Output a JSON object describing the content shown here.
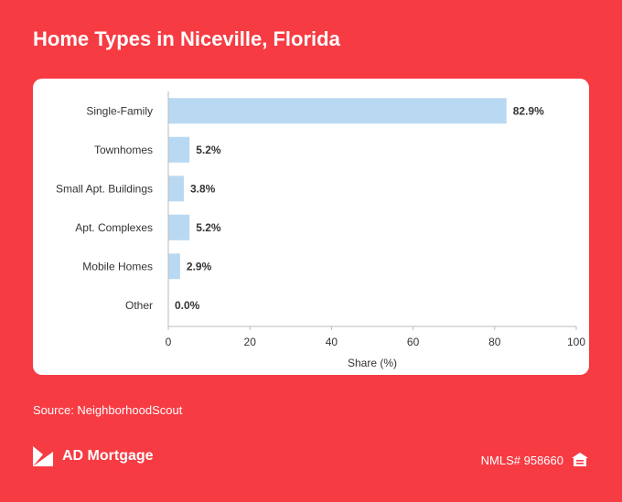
{
  "header": {
    "title": "Home Types in Niceville, Florida"
  },
  "footer": {
    "source": "Source: NeighborhoodScout",
    "brand": "AD Mortgage",
    "brand_icon": "ad-mortgage-logo-icon",
    "nmls": "NMLS# 958660",
    "nmls_icon": "equal-housing-icon"
  },
  "colors": {
    "background": "#F73B43",
    "bar": "#B9D9F2",
    "card": "#FFFFFF",
    "text": "#333333"
  },
  "chart_data": {
    "type": "bar",
    "orientation": "horizontal",
    "categories": [
      "Single-Family",
      "Townhomes",
      "Small Apt. Buildings",
      "Apt. Complexes",
      "Mobile Homes",
      "Other"
    ],
    "values": [
      82.9,
      5.2,
      3.8,
      5.2,
      2.9,
      0.0
    ],
    "value_labels": [
      "82.9%",
      "5.2%",
      "3.8%",
      "5.2%",
      "2.9%",
      "0.0%"
    ],
    "xlabel": "Share (%)",
    "ylabel": "",
    "xlim": [
      0,
      100
    ],
    "xticks": [
      0,
      20,
      40,
      60,
      80,
      100
    ],
    "grid": false,
    "legend": "none"
  }
}
